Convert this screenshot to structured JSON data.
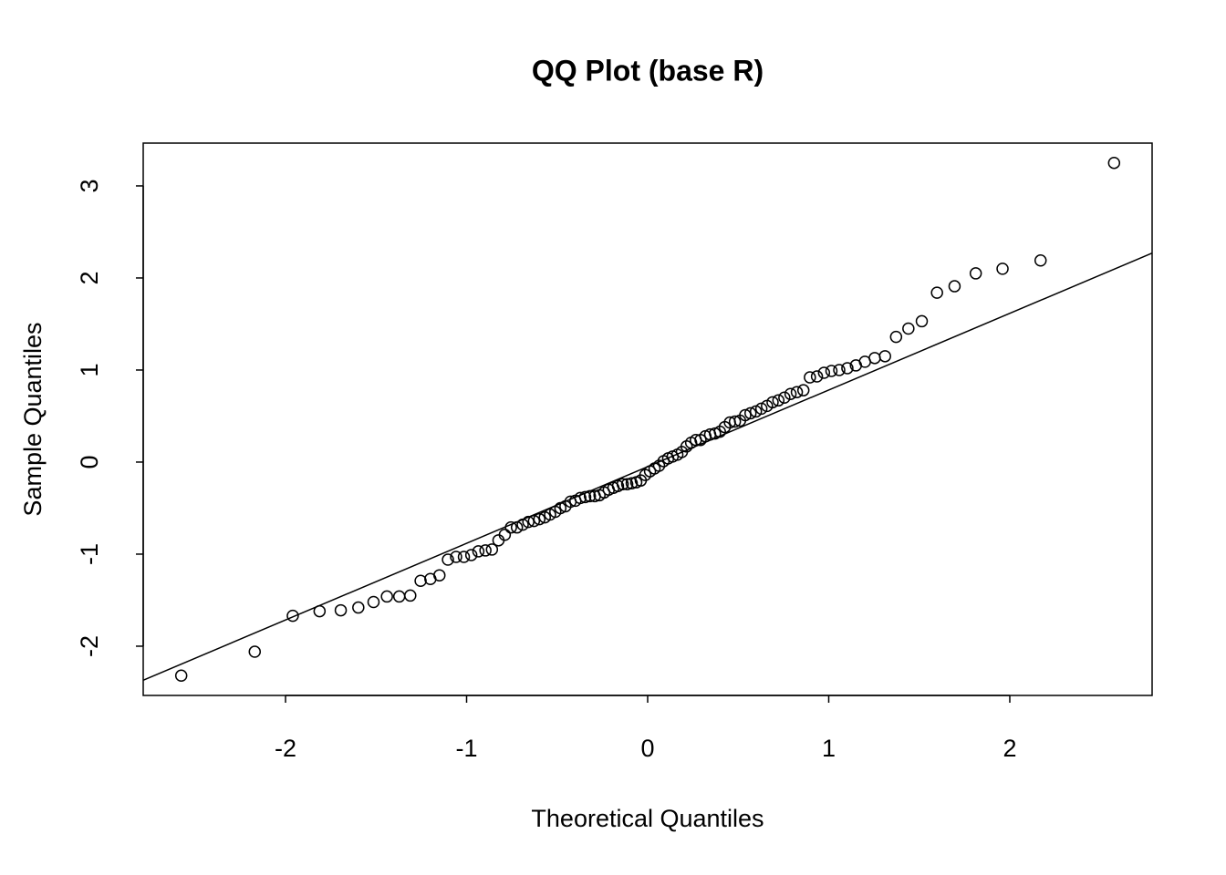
{
  "chart_data": {
    "type": "scatter",
    "title": "QQ Plot (base R)",
    "x_label": "Theoretical Quantiles",
    "y_label": "Sample Quantiles",
    "xlim": [
      -2.786,
      2.786
    ],
    "ylim": [
      -2.535,
      3.465
    ],
    "xticks": [
      -2,
      -1,
      0,
      1,
      2
    ],
    "yticks": [
      -2,
      -1,
      0,
      1,
      2,
      3
    ],
    "color": "#000000",
    "x": [
      -2.576,
      -2.17,
      -1.96,
      -1.812,
      -1.695,
      -1.598,
      -1.514,
      -1.44,
      -1.372,
      -1.311,
      -1.254,
      -1.2,
      -1.15,
      -1.103,
      -1.058,
      -1.015,
      -0.974,
      -0.935,
      -0.896,
      -0.86,
      -0.824,
      -0.789,
      -0.755,
      -0.722,
      -0.69,
      -0.659,
      -0.628,
      -0.598,
      -0.568,
      -0.539,
      -0.51,
      -0.482,
      -0.454,
      -0.426,
      -0.399,
      -0.372,
      -0.345,
      -0.319,
      -0.292,
      -0.266,
      -0.24,
      -0.215,
      -0.189,
      -0.164,
      -0.138,
      -0.113,
      -0.088,
      -0.063,
      -0.038,
      -0.013,
      0.013,
      0.038,
      0.063,
      0.088,
      0.113,
      0.138,
      0.164,
      0.189,
      0.215,
      0.24,
      0.266,
      0.292,
      0.319,
      0.345,
      0.372,
      0.399,
      0.426,
      0.454,
      0.482,
      0.51,
      0.539,
      0.568,
      0.598,
      0.628,
      0.659,
      0.69,
      0.722,
      0.755,
      0.789,
      0.824,
      0.86,
      0.896,
      0.935,
      0.974,
      1.015,
      1.058,
      1.103,
      1.15,
      1.2,
      1.254,
      1.311,
      1.372,
      1.44,
      1.514,
      1.598,
      1.695,
      1.812,
      1.96,
      2.17,
      2.576
    ],
    "values": [
      -2.32,
      -2.06,
      -1.67,
      -1.62,
      -1.61,
      -1.58,
      -1.52,
      -1.46,
      -1.46,
      -1.45,
      -1.29,
      -1.27,
      -1.23,
      -1.06,
      -1.03,
      -1.03,
      -1.01,
      -0.97,
      -0.96,
      -0.95,
      -0.85,
      -0.79,
      -0.71,
      -0.71,
      -0.68,
      -0.65,
      -0.64,
      -0.62,
      -0.6,
      -0.57,
      -0.54,
      -0.5,
      -0.48,
      -0.43,
      -0.42,
      -0.39,
      -0.38,
      -0.37,
      -0.37,
      -0.36,
      -0.33,
      -0.3,
      -0.28,
      -0.26,
      -0.24,
      -0.24,
      -0.23,
      -0.22,
      -0.2,
      -0.14,
      -0.1,
      -0.07,
      -0.04,
      0.01,
      0.04,
      0.06,
      0.08,
      0.11,
      0.17,
      0.21,
      0.24,
      0.24,
      0.28,
      0.3,
      0.31,
      0.33,
      0.38,
      0.43,
      0.44,
      0.45,
      0.51,
      0.53,
      0.55,
      0.58,
      0.61,
      0.65,
      0.67,
      0.7,
      0.74,
      0.76,
      0.78,
      0.92,
      0.93,
      0.97,
      0.99,
      1.0,
      1.02,
      1.05,
      1.09,
      1.13,
      1.15,
      1.36,
      1.45,
      1.53,
      1.84,
      1.91,
      2.05,
      2.1,
      2.19,
      3.25
    ],
    "reference_line": {
      "x": [
        -2.786,
        2.786
      ],
      "y": [
        -2.37,
        2.27
      ]
    }
  }
}
